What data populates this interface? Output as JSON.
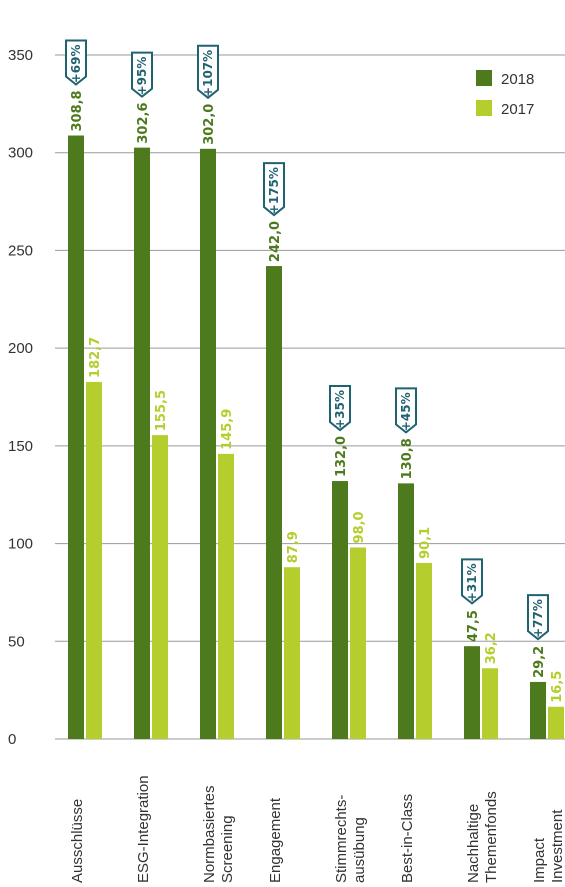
{
  "chart_data": {
    "type": "bar",
    "ylim": [
      0,
      350
    ],
    "yticks": [
      "0",
      "50",
      "100",
      "150",
      "200",
      "250",
      "300",
      "350"
    ],
    "grid": true,
    "legend_position": "top-right",
    "categories": [
      [
        "Ausschlüsse"
      ],
      [
        "ESG-Integration"
      ],
      [
        "Normbasiertes",
        "Screening"
      ],
      [
        "Engagement"
      ],
      [
        "Stimmrechts-",
        "ausübung"
      ],
      [
        "Best-in-Class"
      ],
      [
        "Nachhaltige",
        "Themenfonds"
      ],
      [
        "Impact",
        "Investment"
      ]
    ],
    "series": [
      {
        "name": "2018",
        "color": "#4e7a1e",
        "values": [
          308.8,
          302.6,
          302.0,
          242.0,
          132.0,
          130.8,
          47.5,
          29.2
        ],
        "labels": [
          "308,8",
          "302,6",
          "302,0",
          "242,0",
          "132,0",
          "130,8",
          "47,5",
          "29,2"
        ]
      },
      {
        "name": "2017",
        "color": "#b5ce2d",
        "values": [
          182.7,
          155.5,
          145.9,
          87.9,
          98.0,
          90.1,
          36.2,
          16.5
        ],
        "labels": [
          "182,7",
          "155,5",
          "145,9",
          "87,9",
          "98,0",
          "90,1",
          "36,2",
          "16,5"
        ]
      }
    ],
    "changes": [
      "+69%",
      "+95%",
      "+107%",
      "+175%",
      "+35%",
      "+45%",
      "+31%",
      "+77%"
    ],
    "colors": {
      "grid": "#9a9a9a",
      "badge": "#1f6270",
      "axis_text": "#333333"
    }
  }
}
